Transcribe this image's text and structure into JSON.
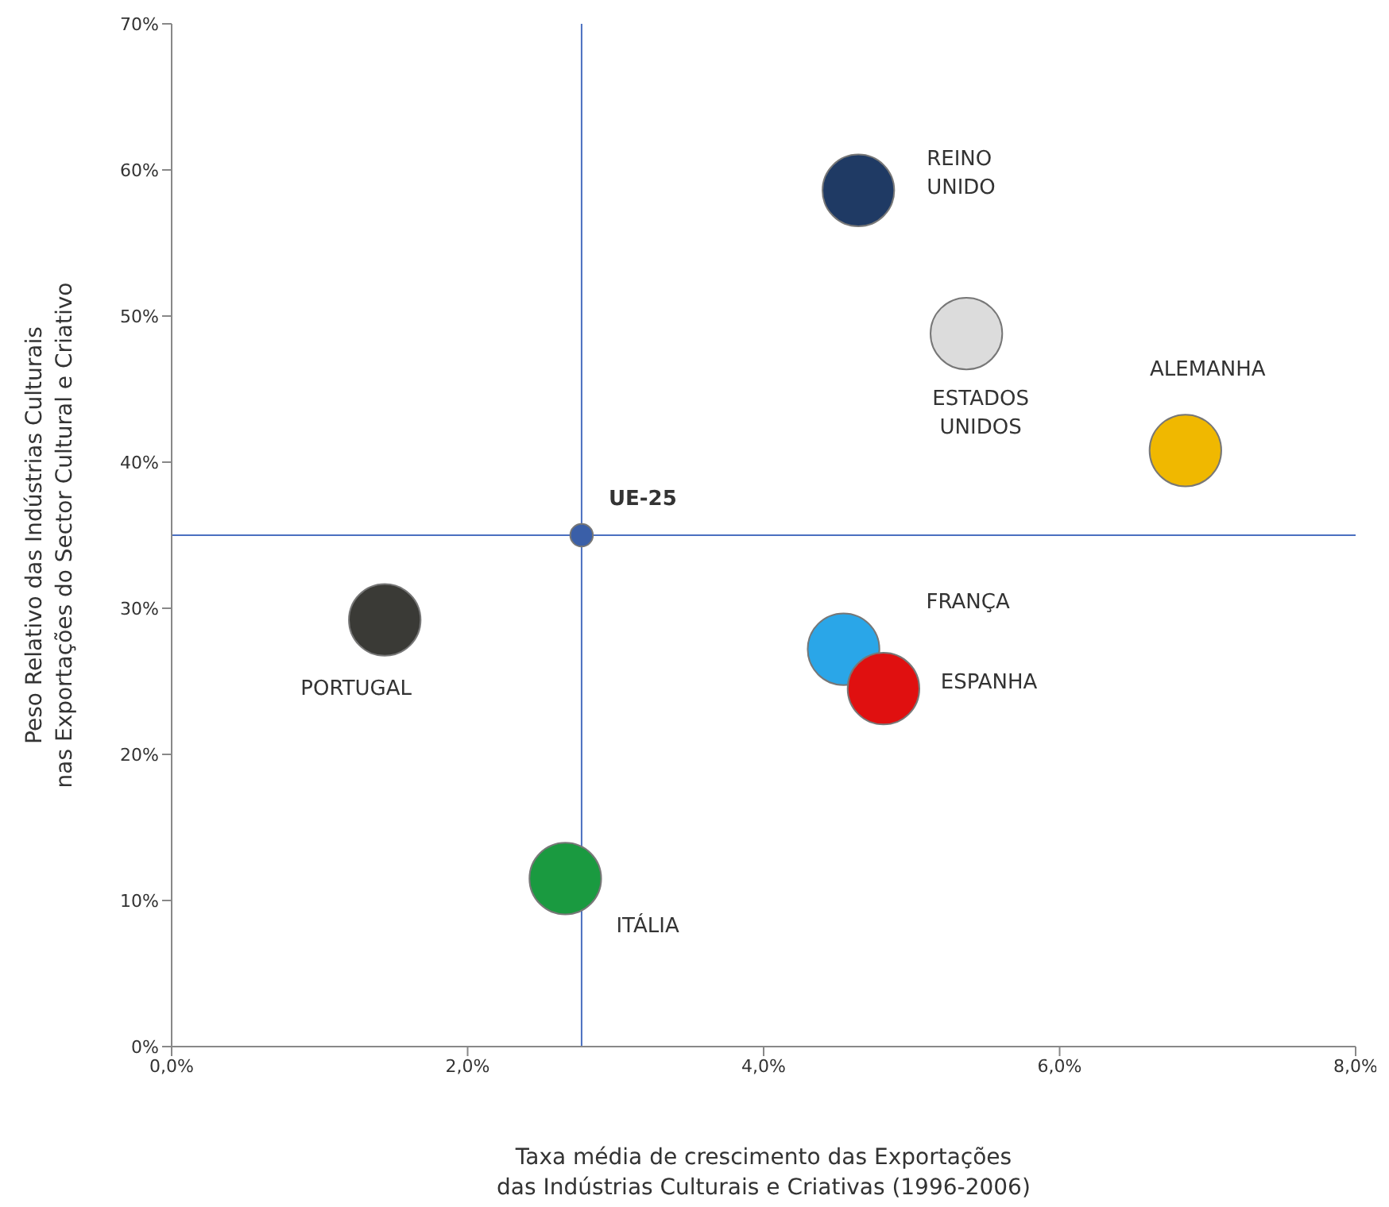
{
  "chart_data": {
    "type": "bubble",
    "xlabel": "Taxa média de crescimento  das Exportações\ndas Indústrias Culturais e Criativas (1996-2006)",
    "ylabel": "Peso Relativo das  Indústrias Culturais\nnas Exportações do Sector Cultural e Criativo",
    "xlim": [
      0,
      8
    ],
    "xticks": [
      {
        "value": 0,
        "label": "0,0%"
      },
      {
        "value": 2,
        "label": "2,0%"
      },
      {
        "value": 4,
        "label": "4,0%"
      },
      {
        "value": 6,
        "label": "6,0%"
      },
      {
        "value": 8,
        "label": "8,0%"
      }
    ],
    "ylim": [
      0,
      70
    ],
    "yticks": [
      {
        "value": 0,
        "label": "0%"
      },
      {
        "value": 10,
        "label": "10%"
      },
      {
        "value": 20,
        "label": "20%"
      },
      {
        "value": 30,
        "label": "30%"
      },
      {
        "value": 40,
        "label": "40%"
      },
      {
        "value": 50,
        "label": "50%"
      },
      {
        "value": 60,
        "label": "60%"
      },
      {
        "value": 70,
        "label": "70%"
      }
    ],
    "grid": false,
    "legend": false,
    "ref_lines": [
      {
        "axis": "x",
        "value": 2.77,
        "color": "#4a6fc0"
      },
      {
        "axis": "y",
        "value": 35,
        "color": "#4a6fc0"
      }
    ],
    "series": [
      {
        "name": "REINO UNIDO",
        "color": "#1f3a64",
        "x": [
          4.64
        ],
        "values": [
          58.6
        ],
        "sizes": [
          1
        ]
      },
      {
        "name": "ESTADOS UNIDOS",
        "color": "#dcdcdc",
        "x": [
          5.37
        ],
        "values": [
          48.8
        ],
        "sizes": [
          1
        ]
      },
      {
        "name": "ALEMANHA",
        "color": "#f0b800",
        "x": [
          6.85
        ],
        "values": [
          40.8
        ],
        "sizes": [
          1
        ]
      },
      {
        "name": "UE-25",
        "color": "#3a5fa8",
        "x": [
          2.77
        ],
        "values": [
          35
        ],
        "sizes": [
          0.1
        ]
      },
      {
        "name": "PORTUGAL",
        "color": "#3a3a36",
        "x": [
          1.44
        ],
        "values": [
          29.2
        ],
        "sizes": [
          1
        ]
      },
      {
        "name": "FRANÇA",
        "color": "#2aa6e8",
        "x": [
          4.54
        ],
        "values": [
          27.2
        ],
        "sizes": [
          1
        ]
      },
      {
        "name": "ESPANHA",
        "color": "#e01010",
        "x": [
          4.81
        ],
        "values": [
          24.5
        ],
        "sizes": [
          1
        ]
      },
      {
        "name": "ITÁLIA",
        "color": "#1a9a40",
        "x": [
          2.66
        ],
        "values": [
          11.5
        ],
        "sizes": [
          1
        ]
      }
    ]
  }
}
